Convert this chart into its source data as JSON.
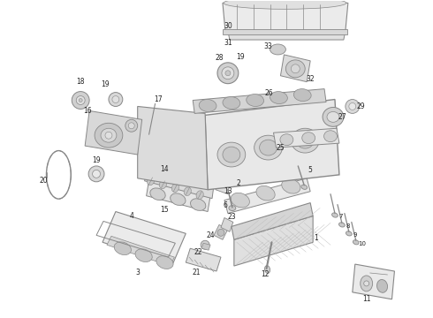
{
  "background_color": "#ffffff",
  "line_color": "#909090",
  "fig_width": 4.9,
  "fig_height": 3.6,
  "dpi": 100,
  "lc": "#888888",
  "lw_main": 0.7,
  "gray_fill": "#e8e8e8",
  "gray_dark": "#cccccc",
  "gray_light": "#f2f2f2",
  "gray_mid": "#d8d8d8"
}
